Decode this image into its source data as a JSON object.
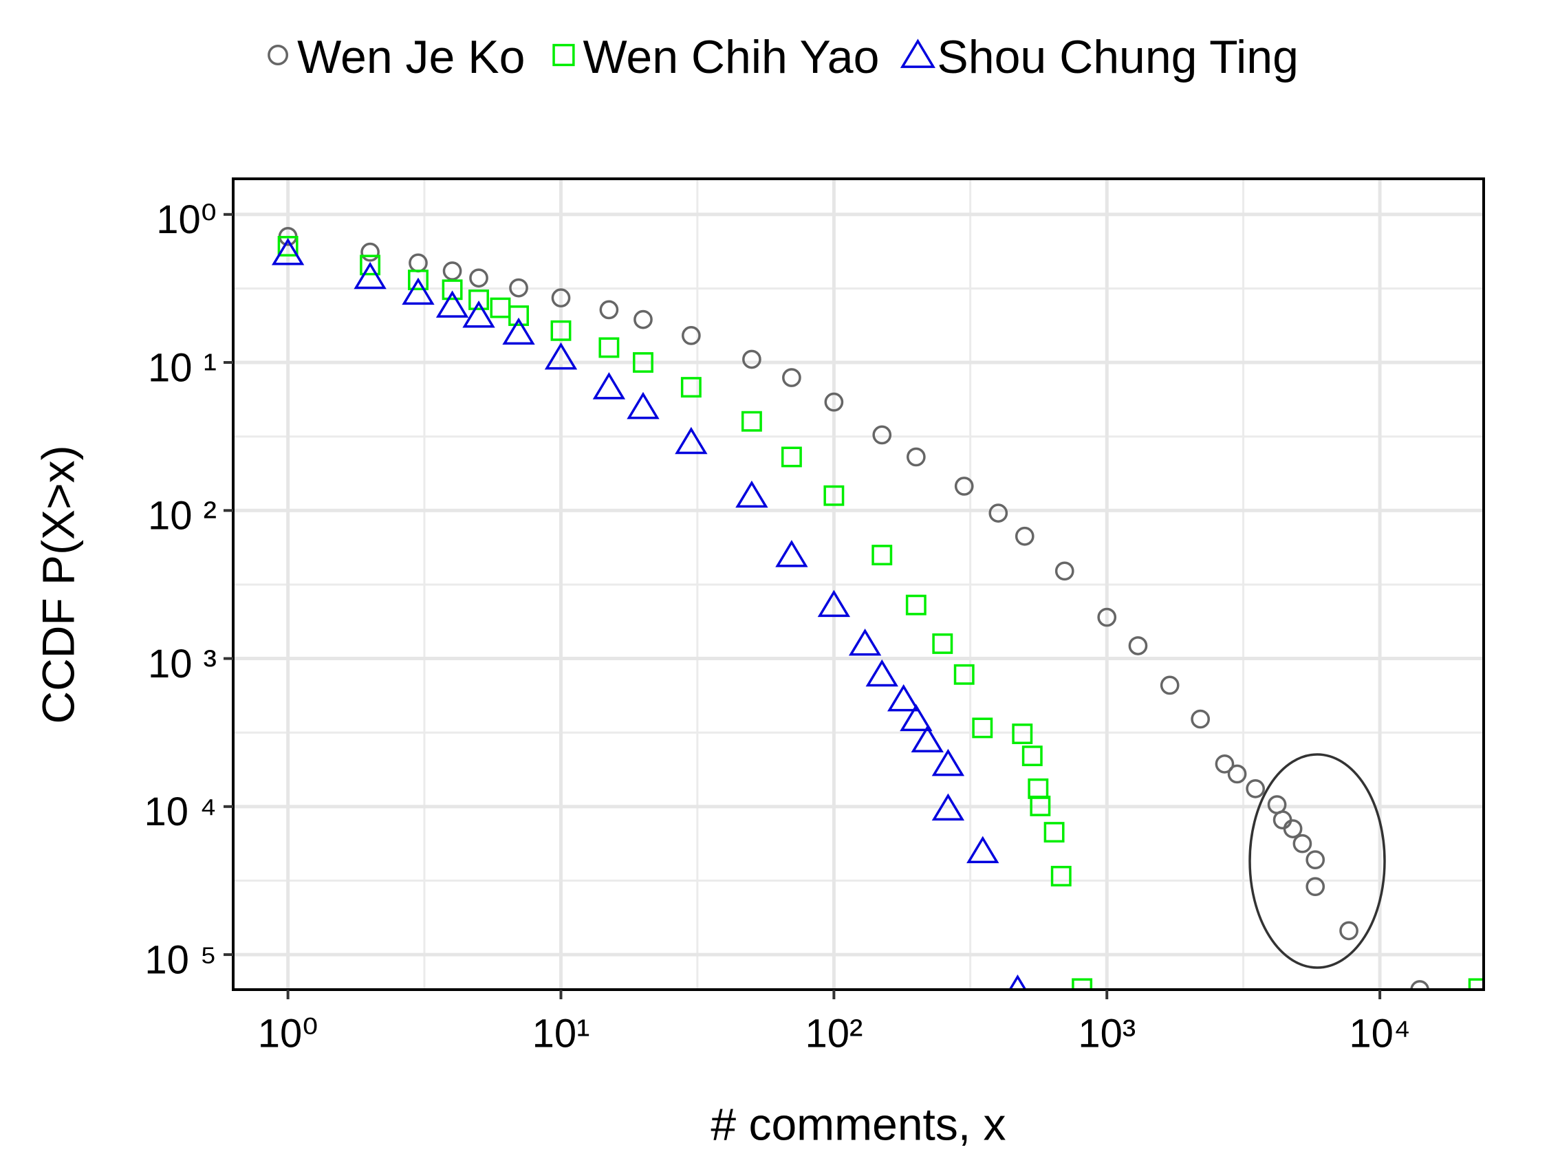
{
  "chart_data": {
    "type": "scatter",
    "xlabel": "# comments, x",
    "ylabel": "CCDF P(X>x)",
    "xscale": "log",
    "yscale": "log",
    "grid": true,
    "legend": "top",
    "xlim": [
      0.63,
      24000
    ],
    "ylim": [
      5.8e-06,
      1.74
    ],
    "xticks": [
      {
        "value": 1,
        "label": "10⁰"
      },
      {
        "value": 10,
        "label": "10¹"
      },
      {
        "value": 100,
        "label": "10²"
      },
      {
        "value": 1000,
        "label": "10³"
      },
      {
        "value": 10000,
        "label": "10⁴"
      }
    ],
    "yticks": [
      {
        "value": 1,
        "label": "10⁰"
      },
      {
        "value": 0.1,
        "label": "10 ¹"
      },
      {
        "value": 0.01,
        "label": "10 ²"
      },
      {
        "value": 0.001,
        "label": "10 ³"
      },
      {
        "value": 0.0001,
        "label": "10 ⁴"
      },
      {
        "value": 1e-05,
        "label": "10 ⁵"
      }
    ],
    "xminor": [
      3.16,
      31.6,
      316,
      3160
    ],
    "yminor": [
      0.316,
      0.0316,
      0.00316,
      0.000316,
      3.16e-05
    ],
    "series": [
      {
        "name": "Wen Je Ko",
        "color": "#666666",
        "marker": "circle",
        "x": [
          1,
          2,
          3,
          4,
          5,
          7,
          10,
          15,
          20,
          30,
          50,
          70,
          100,
          150,
          200,
          300,
          400,
          500,
          700,
          1000,
          1300,
          1700,
          2200,
          2700,
          3000,
          3500,
          4200,
          4400,
          4800,
          5200,
          5800,
          5800,
          7700,
          14000
        ],
        "values": [
          0.71,
          0.556,
          0.47,
          0.415,
          0.372,
          0.319,
          0.273,
          0.227,
          0.195,
          0.152,
          0.105,
          0.079,
          0.054,
          0.0324,
          0.023,
          0.0146,
          0.0096,
          0.0067,
          0.0039,
          0.0019,
          0.00122,
          0.00066,
          0.00039,
          0.000194,
          0.000166,
          0.000132,
          0.000103,
          8.13e-05,
          7.08e-05,
          5.62e-05,
          4.37e-05,
          2.88e-05,
          1.45e-05,
          5.8e-06
        ]
      },
      {
        "name": "Wen Chih Yao",
        "color": "#00ee00",
        "marker": "square",
        "x": [
          1,
          2,
          3,
          4,
          5,
          6,
          7,
          10,
          15,
          20,
          30,
          50,
          70,
          100,
          150,
          200,
          250,
          300,
          350,
          490,
          533,
          560,
          570,
          641,
          680,
          811,
          23000
        ],
        "values": [
          0.61,
          0.455,
          0.361,
          0.31,
          0.265,
          0.234,
          0.207,
          0.164,
          0.126,
          0.1,
          0.068,
          0.04,
          0.023,
          0.0126,
          0.005,
          0.0023,
          0.00126,
          0.00078,
          0.00034,
          0.00031,
          0.00022,
          0.000132,
          0.000101,
          6.71e-05,
          3.39e-05,
          5.9e-06,
          5.9e-06
        ]
      },
      {
        "name": "Shou Chung Ting",
        "color": "#0000dd",
        "marker": "triangle",
        "x": [
          1,
          2,
          3,
          4,
          5,
          7,
          10,
          15,
          20,
          30,
          50,
          70,
          100,
          130,
          150,
          180,
          200,
          220,
          262,
          262,
          351,
          471
        ],
        "values": [
          0.548,
          0.378,
          0.296,
          0.242,
          0.207,
          0.159,
          0.108,
          0.068,
          0.05,
          0.029,
          0.0126,
          0.005,
          0.0023,
          0.00126,
          0.00078,
          0.00053,
          0.00039,
          0.00028,
          0.000194,
          9.7e-05,
          5e-05,
          5.8e-06
        ]
      }
    ]
  }
}
